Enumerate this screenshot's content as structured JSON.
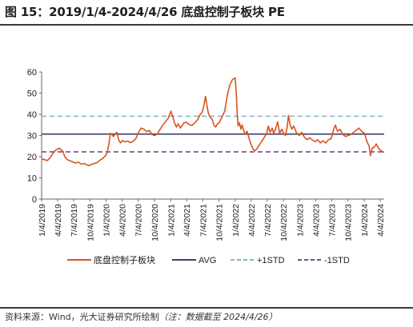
{
  "figure": {
    "title": "图 15：2019/1/4-2024/4/26 底盘控制子板块 PE",
    "source_label": "资料来源：Wind，光大证券研究所绘制",
    "note": "（注：数据截至 2024/4/26）"
  },
  "chart_data": {
    "type": "line",
    "ylim": [
      0,
      60
    ],
    "yticks": [
      0,
      10,
      20,
      30,
      40,
      50,
      60
    ],
    "xlim": [
      "2019-01-04",
      "2024-04-26"
    ],
    "xticks": [
      "1/4/2019",
      "4/4/2019",
      "7/4/2019",
      "10/4/2019",
      "1/4/2020",
      "4/4/2020",
      "7/4/2020",
      "10/4/2020",
      "1/4/2021",
      "4/4/2021",
      "7/4/2021",
      "10/4/2021",
      "1/4/2022",
      "4/4/2022",
      "7/4/2022",
      "10/4/2022",
      "1/4/2023",
      "4/4/2023",
      "7/4/2023",
      "10/4/2023",
      "1/4/2024",
      "4/4/2024"
    ],
    "grid": false,
    "legend_position": "bottom",
    "series": [
      {
        "name": "底盘控制子板块",
        "style": "solid",
        "color": "#D9541E",
        "points": [
          [
            "2019-01-04",
            19.0
          ],
          [
            "2019-01-20",
            18.6
          ],
          [
            "2019-02-05",
            18.2
          ],
          [
            "2019-02-20",
            19.4
          ],
          [
            "2019-03-05",
            21.0
          ],
          [
            "2019-03-20",
            22.8
          ],
          [
            "2019-04-04",
            23.6
          ],
          [
            "2019-04-15",
            24.0
          ],
          [
            "2019-04-25",
            23.2
          ],
          [
            "2019-05-05",
            22.5
          ],
          [
            "2019-05-15",
            20.0
          ],
          [
            "2019-05-30",
            18.6
          ],
          [
            "2019-06-15",
            18.0
          ],
          [
            "2019-07-01",
            17.5
          ],
          [
            "2019-07-15",
            17.0
          ],
          [
            "2019-08-01",
            17.4
          ],
          [
            "2019-08-15",
            16.6
          ],
          [
            "2019-09-01",
            16.8
          ],
          [
            "2019-09-15",
            16.2
          ],
          [
            "2019-10-01",
            15.8
          ],
          [
            "2019-10-15",
            16.4
          ],
          [
            "2019-11-01",
            16.9
          ],
          [
            "2019-11-15",
            17.2
          ],
          [
            "2019-12-01",
            18.4
          ],
          [
            "2019-12-15",
            19.2
          ],
          [
            "2020-01-01",
            20.5
          ],
          [
            "2020-01-10",
            22.0
          ],
          [
            "2020-01-20",
            26.0
          ],
          [
            "2020-01-28",
            31.0
          ],
          [
            "2020-02-05",
            30.5
          ],
          [
            "2020-02-15",
            29.5
          ],
          [
            "2020-02-25",
            30.8
          ],
          [
            "2020-03-05",
            31.5
          ],
          [
            "2020-03-15",
            28.0
          ],
          [
            "2020-03-25",
            26.5
          ],
          [
            "2020-04-05",
            27.6
          ],
          [
            "2020-04-20",
            27.0
          ],
          [
            "2020-05-05",
            27.4
          ],
          [
            "2020-05-20",
            26.6
          ],
          [
            "2020-06-05",
            27.3
          ],
          [
            "2020-06-20",
            28.5
          ],
          [
            "2020-07-05",
            31.5
          ],
          [
            "2020-07-20",
            33.5
          ],
          [
            "2020-08-05",
            33.0
          ],
          [
            "2020-08-20",
            31.8
          ],
          [
            "2020-09-05",
            32.4
          ],
          [
            "2020-09-20",
            30.4
          ],
          [
            "2020-10-05",
            30.0
          ],
          [
            "2020-10-20",
            30.8
          ],
          [
            "2020-11-05",
            33.0
          ],
          [
            "2020-11-20",
            35.0
          ],
          [
            "2020-12-05",
            36.5
          ],
          [
            "2020-12-20",
            38.0
          ],
          [
            "2021-01-05",
            41.5
          ],
          [
            "2021-01-15",
            39.0
          ],
          [
            "2021-01-25",
            36.0
          ],
          [
            "2021-02-05",
            34.0
          ],
          [
            "2021-02-15",
            35.5
          ],
          [
            "2021-02-28",
            33.5
          ],
          [
            "2021-03-10",
            34.8
          ],
          [
            "2021-03-20",
            36.0
          ],
          [
            "2021-04-05",
            36.2
          ],
          [
            "2021-04-20",
            35.0
          ],
          [
            "2021-05-05",
            34.8
          ],
          [
            "2021-05-20",
            36.0
          ],
          [
            "2021-06-05",
            37.5
          ],
          [
            "2021-06-20",
            40.0
          ],
          [
            "2021-07-01",
            41.0
          ],
          [
            "2021-07-10",
            44.0
          ],
          [
            "2021-07-20",
            48.5
          ],
          [
            "2021-07-28",
            44.0
          ],
          [
            "2021-08-05",
            40.5
          ],
          [
            "2021-08-15",
            38.5
          ],
          [
            "2021-08-25",
            38.0
          ],
          [
            "2021-09-05",
            35.0
          ],
          [
            "2021-09-15",
            34.0
          ],
          [
            "2021-09-25",
            35.5
          ],
          [
            "2021-10-05",
            36.0
          ],
          [
            "2021-10-20",
            38.5
          ],
          [
            "2021-11-05",
            41.5
          ],
          [
            "2021-11-20",
            49.0
          ],
          [
            "2021-12-05",
            54.0
          ],
          [
            "2021-12-20",
            56.5
          ],
          [
            "2022-01-04",
            57.2
          ],
          [
            "2022-01-10",
            50.0
          ],
          [
            "2022-01-15",
            40.0
          ],
          [
            "2022-01-20",
            34.5
          ],
          [
            "2022-01-28",
            36.0
          ],
          [
            "2022-02-05",
            33.0
          ],
          [
            "2022-02-12",
            35.0
          ],
          [
            "2022-02-20",
            32.5
          ],
          [
            "2022-03-01",
            30.5
          ],
          [
            "2022-03-12",
            32.0
          ],
          [
            "2022-03-25",
            28.0
          ],
          [
            "2022-04-05",
            25.5
          ],
          [
            "2022-04-15",
            23.5
          ],
          [
            "2022-04-25",
            22.8
          ],
          [
            "2022-05-05",
            23.5
          ],
          [
            "2022-05-20",
            25.5
          ],
          [
            "2022-06-05",
            27.5
          ],
          [
            "2022-06-20",
            29.5
          ],
          [
            "2022-07-01",
            31.0
          ],
          [
            "2022-07-10",
            34.5
          ],
          [
            "2022-07-20",
            31.5
          ],
          [
            "2022-08-01",
            33.5
          ],
          [
            "2022-08-10",
            31.0
          ],
          [
            "2022-08-20",
            33.0
          ],
          [
            "2022-09-01",
            36.5
          ],
          [
            "2022-09-12",
            31.0
          ],
          [
            "2022-09-25",
            33.0
          ],
          [
            "2022-10-05",
            31.0
          ],
          [
            "2022-10-15",
            30.0
          ],
          [
            "2022-10-25",
            34.0
          ],
          [
            "2022-11-01",
            39.5
          ],
          [
            "2022-11-10",
            35.5
          ],
          [
            "2022-11-20",
            33.0
          ],
          [
            "2022-12-01",
            34.5
          ],
          [
            "2022-12-15",
            31.5
          ],
          [
            "2023-01-01",
            30.0
          ],
          [
            "2023-01-15",
            31.5
          ],
          [
            "2023-02-01",
            29.0
          ],
          [
            "2023-02-15",
            28.0
          ],
          [
            "2023-03-01",
            29.0
          ],
          [
            "2023-03-15",
            28.0
          ],
          [
            "2023-04-01",
            27.0
          ],
          [
            "2023-04-15",
            28.0
          ],
          [
            "2023-05-01",
            26.5
          ],
          [
            "2023-05-15",
            27.5
          ],
          [
            "2023-06-01",
            26.5
          ],
          [
            "2023-06-15",
            28.0
          ],
          [
            "2023-07-01",
            28.5
          ],
          [
            "2023-07-15",
            33.0
          ],
          [
            "2023-07-25",
            35.0
          ],
          [
            "2023-08-05",
            32.0
          ],
          [
            "2023-08-20",
            33.0
          ],
          [
            "2023-09-05",
            30.5
          ],
          [
            "2023-09-20",
            29.5
          ],
          [
            "2023-10-05",
            30.0
          ],
          [
            "2023-10-20",
            30.5
          ],
          [
            "2023-11-05",
            31.5
          ],
          [
            "2023-11-20",
            32.5
          ],
          [
            "2023-12-05",
            33.5
          ],
          [
            "2023-12-20",
            32.0
          ],
          [
            "2024-01-05",
            31.0
          ],
          [
            "2024-01-20",
            27.0
          ],
          [
            "2024-02-01",
            25.0
          ],
          [
            "2024-02-08",
            20.5
          ],
          [
            "2024-02-18",
            24.0
          ],
          [
            "2024-03-01",
            24.5
          ],
          [
            "2024-03-12",
            26.0
          ],
          [
            "2024-03-25",
            24.0
          ],
          [
            "2024-04-05",
            23.0
          ],
          [
            "2024-04-15",
            22.5
          ],
          [
            "2024-04-26",
            22.0
          ]
        ]
      },
      {
        "name": "AVG",
        "style": "solid",
        "color": "#3C3B6E",
        "value": 30.7
      },
      {
        "name": "+1STD",
        "style": "dashed",
        "color": "#7FB5C8",
        "value": 39.1
      },
      {
        "name": "-1STD",
        "style": "dashed",
        "color": "#7B4A8E",
        "value": 22.3
      }
    ]
  }
}
